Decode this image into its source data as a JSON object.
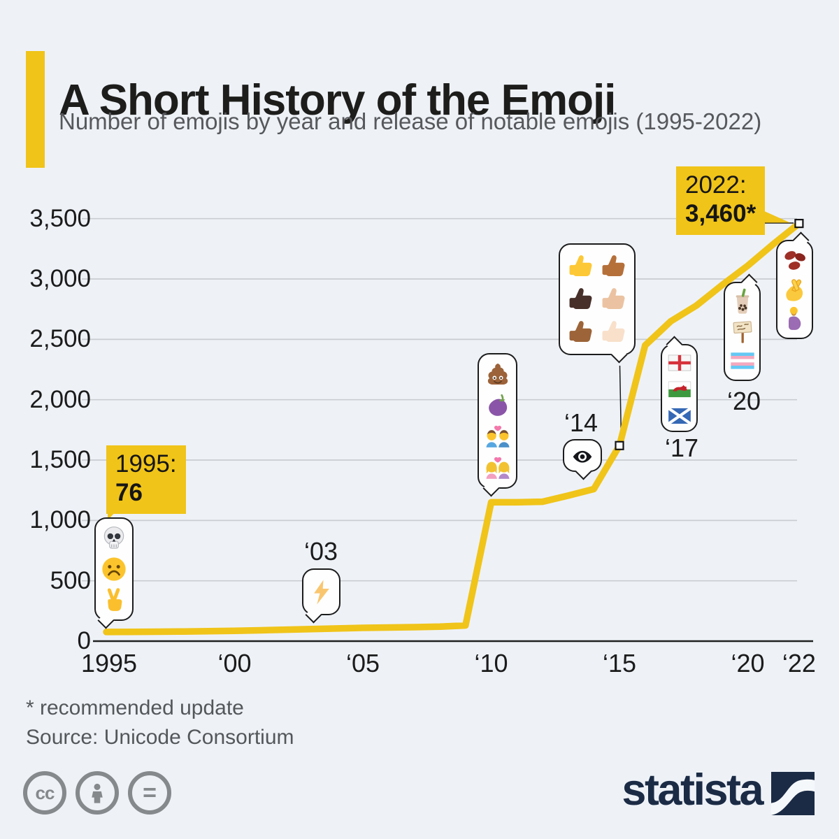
{
  "page": {
    "background": "#EEF2F7"
  },
  "header": {
    "title": "A Short History of the Emoji",
    "subtitle": "Number of emojis by year and release of notable emojis (1995-2022)",
    "accent_color": "#F0C419"
  },
  "chart_data": {
    "type": "line",
    "title": "Number of emojis by year and release of notable emojis (1995-2022)",
    "x": [
      1995,
      1996,
      1997,
      1998,
      1999,
      2000,
      2001,
      2002,
      2003,
      2004,
      2005,
      2006,
      2007,
      2008,
      2009,
      2010,
      2011,
      2012,
      2013,
      2014,
      2015,
      2016,
      2017,
      2018,
      2019,
      2020,
      2021,
      2022
    ],
    "values": [
      76,
      77,
      78,
      80,
      82,
      85,
      90,
      95,
      100,
      105,
      110,
      113,
      116,
      120,
      130,
      1150,
      1150,
      1155,
      1205,
      1260,
      1620,
      2450,
      2650,
      2780,
      2950,
      3110,
      3290,
      3460
    ],
    "ylim": [
      0,
      3500
    ],
    "grid": true,
    "legend": "none",
    "line_color": "#F0C419",
    "yticks": {
      "values": [
        0,
        500,
        1000,
        1500,
        2000,
        2500,
        3000,
        3500
      ],
      "labels": [
        "0",
        "500",
        "1,000",
        "1,500",
        "2,000",
        "2,500",
        "3,000",
        "3,500"
      ]
    },
    "xticks": {
      "years": [
        1995,
        2000,
        2005,
        2010,
        2015,
        2020,
        2022
      ],
      "labels": [
        "1995",
        "‘00",
        "‘05",
        "‘10",
        "‘15",
        "‘20",
        "‘22"
      ]
    },
    "markers": [
      {
        "year": 2015,
        "value": 1620
      },
      {
        "year": 2022,
        "value": 3460
      }
    ],
    "annotations": {
      "start_callout": {
        "line1": "1995:",
        "line2": "76"
      },
      "end_callout": {
        "line1": "2022:",
        "line2": "3,460*"
      },
      "bubbles": [
        {
          "id": "1995",
          "year_label": "",
          "emojis": [
            {
              "name": "skull",
              "char": "💀"
            },
            {
              "name": "frowning-face",
              "char": "☹️"
            },
            {
              "name": "victory-hand",
              "char": "✌️"
            }
          ]
        },
        {
          "id": "2003",
          "year_label": "‘03",
          "emojis": [
            {
              "name": "high-voltage",
              "char": "⚡"
            }
          ]
        },
        {
          "id": "2010",
          "year_label": "",
          "emojis": [
            {
              "name": "pile-of-poo",
              "char": "💩"
            },
            {
              "name": "eggplant",
              "char": "🍆"
            },
            {
              "name": "couple-with-heart-man-man",
              "char": "👨‍❤️‍👨"
            },
            {
              "name": "couple-with-heart-woman-woman",
              "char": "👩‍❤️‍👩"
            }
          ]
        },
        {
          "id": "2014",
          "year_label": "‘14",
          "emojis": [
            {
              "name": "eye-in-speech-bubble",
              "char": "👁️‍🗨️"
            }
          ]
        },
        {
          "id": "2015",
          "year_label": "",
          "emojis": [
            {
              "name": "thumbs-up",
              "char": "👍"
            },
            {
              "name": "thumbs-up-medium-dark-skin",
              "char": "👍🏾"
            },
            {
              "name": "thumbs-up-dark-skin",
              "char": "👍🏿"
            },
            {
              "name": "thumbs-up-medium-light-skin",
              "char": "👍🏼"
            },
            {
              "name": "thumbs-up-medium-skin",
              "char": "👍🏽"
            },
            {
              "name": "thumbs-up-light-skin",
              "char": "👍🏻"
            }
          ]
        },
        {
          "id": "2017",
          "year_label": "‘17",
          "emojis": [
            {
              "name": "flag-england",
              "char": "🏴󠁧󠁢󠁥󠁮󠁧󠁿"
            },
            {
              "name": "flag-wales",
              "char": "🏴󠁧󠁢󠁷󠁬󠁳󠁿"
            },
            {
              "name": "flag-scotland",
              "char": "🏴󠁧󠁢󠁳󠁣󠁴󠁿"
            }
          ]
        },
        {
          "id": "2020",
          "year_label": "‘20",
          "emojis": [
            {
              "name": "bubble-tea",
              "char": "🧋"
            },
            {
              "name": "placard",
              "char": "🪧"
            },
            {
              "name": "transgender-flag",
              "char": "🏳️‍⚧️"
            }
          ]
        },
        {
          "id": "2022",
          "year_label": "",
          "emojis": [
            {
              "name": "beans",
              "char": "🫘"
            },
            {
              "name": "hand-with-index-finger-and-thumb-crossed",
              "char": "🫰"
            },
            {
              "name": "pregnant-man",
              "char": "🫃"
            }
          ]
        }
      ]
    }
  },
  "footer": {
    "footnote": "* recommended update",
    "source": "Source: Unicode Consortium"
  },
  "branding": {
    "license_icons": [
      {
        "name": "cc",
        "glyph": "cc"
      },
      {
        "name": "attribution",
        "glyph": "person"
      },
      {
        "name": "no-derivatives",
        "glyph": "="
      }
    ],
    "logo_text": "statista"
  }
}
